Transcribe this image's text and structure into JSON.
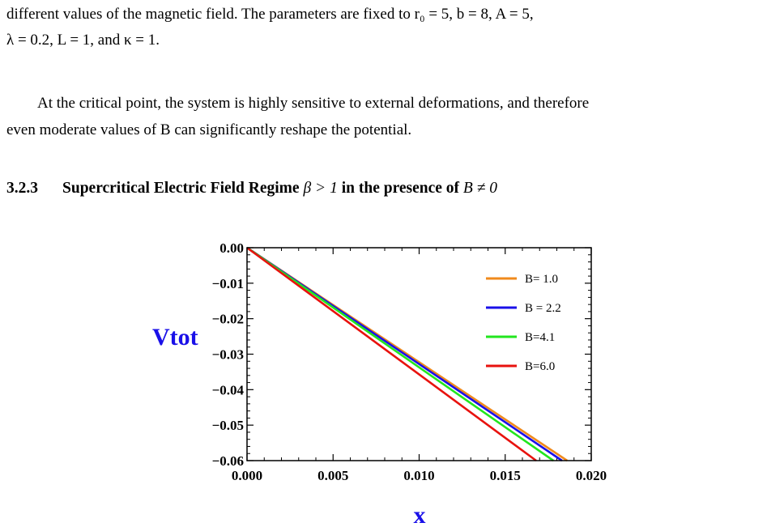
{
  "text": {
    "line1": "different values of the magnetic field.  The parameters are fixed to r₀ = 5, b = 8, A = 5,",
    "line2": "λ = 0.2, L = 1, and κ = 1.",
    "line3": "At the critical point, the system is highly sensitive to external deformations, and therefore",
    "line4": "even moderate values of B can significantly reshape the potential."
  },
  "section": {
    "number": "3.2.3",
    "title": "Supercritical Electric Field Regime",
    "cond1": "β > 1",
    "mid": "in the presence of",
    "cond2": "B ≠ 0"
  },
  "chart_data": {
    "type": "line",
    "xlabel": "x",
    "ylabel": "Vtot",
    "xlim": [
      0,
      0.02
    ],
    "ylim": [
      -0.06,
      0
    ],
    "xticks": [
      0,
      0.005,
      0.01,
      0.015,
      0.02
    ],
    "xtick_labels": [
      "0.000",
      "0.005",
      "0.010",
      "0.015",
      "0.020"
    ],
    "yticks": [
      0,
      -0.01,
      -0.02,
      -0.03,
      -0.04,
      -0.05,
      -0.06
    ],
    "ytick_labels": [
      "0.00",
      "−0.01",
      "−0.02",
      "−0.03",
      "−0.04",
      "−0.05",
      "−0.06"
    ],
    "legend_position": "top-right",
    "grid": false,
    "series": [
      {
        "name": "B= 1.0",
        "color": "#f08a1c",
        "x": [
          0,
          0.0186
        ],
        "y": [
          0,
          -0.06
        ]
      },
      {
        "name": "B = 2.2",
        "color": "#1a10e8",
        "x": [
          0,
          0.0183
        ],
        "y": [
          0,
          -0.06
        ]
      },
      {
        "name": "B=4.1",
        "color": "#22e61e",
        "x": [
          0,
          0.0178
        ],
        "y": [
          0,
          -0.06
        ]
      },
      {
        "name": "B=6.0",
        "color": "#e8120e",
        "x": [
          0,
          0.0168
        ],
        "y": [
          0,
          -0.06
        ]
      }
    ]
  }
}
